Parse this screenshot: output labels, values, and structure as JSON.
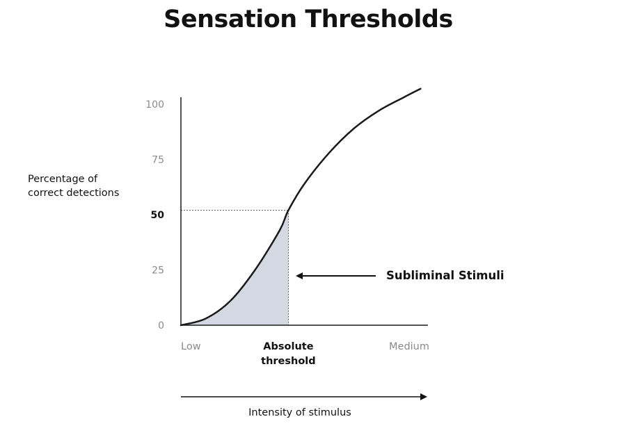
{
  "chart_data": {
    "type": "line",
    "title": "Sensation Thresholds",
    "xlabel": "Intensity of stimulus",
    "ylabel": [
      "Percentage of",
      "correct detections"
    ],
    "ylim": [
      0,
      100
    ],
    "xlim": [
      0,
      1
    ],
    "yticks": [
      {
        "value": 0,
        "label": "0",
        "emphasis": false
      },
      {
        "value": 25,
        "label": "25",
        "emphasis": false
      },
      {
        "value": 50,
        "label": "50",
        "emphasis": true
      },
      {
        "value": 75,
        "label": "75",
        "emphasis": false
      },
      {
        "value": 100,
        "label": "100",
        "emphasis": false
      }
    ],
    "xticks": [
      {
        "value": 0,
        "lines": [
          "Low"
        ],
        "emphasis": false
      },
      {
        "value": 0.435,
        "lines": [
          "Absolute",
          "threshold"
        ],
        "emphasis": true
      },
      {
        "value": 1,
        "lines": [
          "Medium"
        ],
        "emphasis": false
      }
    ],
    "series": [
      {
        "x": [
          0,
          0.1,
          0.2,
          0.3,
          0.4,
          0.435,
          0.5,
          0.6,
          0.7,
          0.8,
          0.9,
          0.97
        ],
        "y": [
          0,
          3,
          11,
          25,
          43,
          52,
          64,
          78,
          89,
          97,
          103,
          107
        ]
      }
    ],
    "threshold": {
      "x": 0.435,
      "y": 52
    },
    "shaded_region": {
      "from_x": 0,
      "to_x": 0.435,
      "label": "Subliminal Stimuli"
    },
    "grid": false,
    "colors": {
      "curve": "#1a1a1a",
      "shade": "#d4d8e3",
      "axis": "#1a1a1a",
      "tick_muted": "#8a8a8a"
    }
  }
}
